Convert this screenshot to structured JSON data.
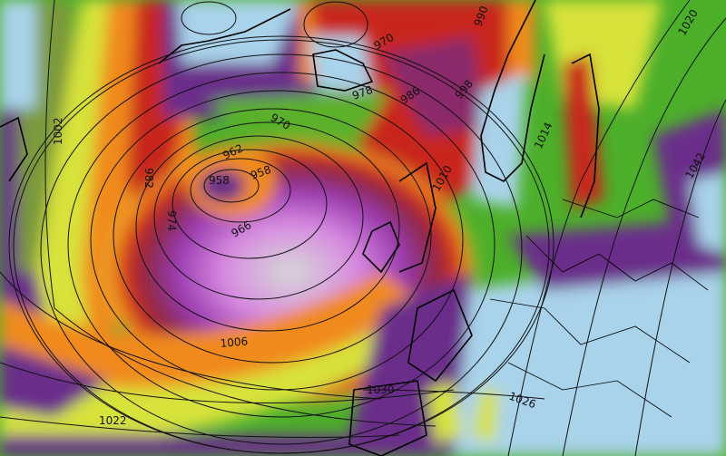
{
  "map": {
    "type": "mean sea level pressure isobars over wind speed shading",
    "colors": {
      "calm": "#a9d3ea",
      "light": "#6a2d8a",
      "moderate": "#4caf2a",
      "fresh": "#d7e23a",
      "strong": "#f08a1e",
      "gale": "#c8281e",
      "storm": "#8a2a6a",
      "extreme": "#d78be0",
      "core": "#d8d8d8",
      "isobar": "#111111",
      "coast": "#000000"
    },
    "isobar_labels": [
      "1002",
      "982",
      "974",
      "970",
      "962",
      "958",
      "958",
      "966",
      "970",
      "978",
      "986",
      "990",
      "998",
      "1010",
      "1014",
      "1020",
      "1042",
      "1006",
      "1022",
      "1030",
      "1026"
    ]
  }
}
